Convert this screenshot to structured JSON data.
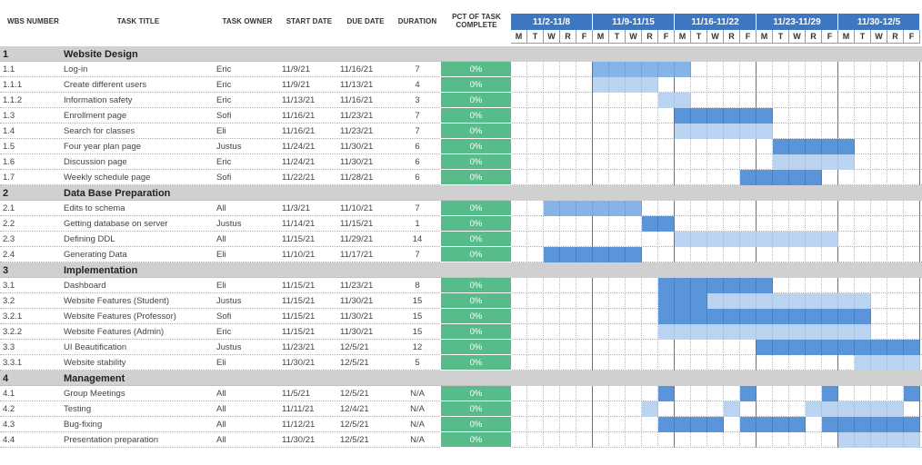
{
  "headers": {
    "wbs": "WBS NUMBER",
    "title": "TASK TITLE",
    "owner": "TASK OWNER",
    "start": "START DATE",
    "due": "DUE DATE",
    "duration": "DURATION",
    "pct": "PCT OF TASK COMPLETE"
  },
  "weeks": [
    "11/2-11/8",
    "11/9-11/15",
    "11/16-11/22",
    "11/23-11/29",
    "11/30-12/5"
  ],
  "days": [
    "M",
    "T",
    "W",
    "R",
    "F",
    "M",
    "T",
    "W",
    "R",
    "F",
    "M",
    "T",
    "W",
    "R",
    "F",
    "M",
    "T",
    "W",
    "R",
    "F",
    "M",
    "T",
    "W",
    "R",
    "F"
  ],
  "colors": {
    "dark": "#5b95d9",
    "mid": "#87b4e6",
    "light": "#b9d3f0",
    "complete": "#57bb8a",
    "week_header": "#3d77c2",
    "section": "#d0d0d0"
  },
  "rows": [
    {
      "type": "section",
      "wbs": "1",
      "title": "Website Design"
    },
    {
      "type": "task",
      "wbs": "1.1",
      "title": "Log-in",
      "owner": "Eric",
      "start": "11/9/21",
      "due": "11/16/21",
      "duration": "7",
      "pct": "0%",
      "bar": [
        [
          5,
          10,
          "mid"
        ]
      ]
    },
    {
      "type": "task",
      "wbs": "1.1.1",
      "title": "Create different users",
      "owner": "Eric",
      "start": "11/9/21",
      "due": "11/13/21",
      "duration": "4",
      "pct": "0%",
      "bar": [
        [
          5,
          8,
          "light"
        ]
      ]
    },
    {
      "type": "task",
      "wbs": "1.1.2",
      "title": "Information safety",
      "owner": "Eric",
      "start": "11/13/21",
      "due": "11/16/21",
      "duration": "3",
      "pct": "0%",
      "bar": [
        [
          9,
          10,
          "light"
        ]
      ]
    },
    {
      "type": "task",
      "wbs": "1.3",
      "title": "Enrollment page",
      "owner": "Sofi",
      "start": "11/16/21",
      "due": "11/23/21",
      "duration": "7",
      "pct": "0%",
      "bar": [
        [
          10,
          15,
          "dark"
        ]
      ]
    },
    {
      "type": "task",
      "wbs": "1.4",
      "title": "Search for classes",
      "owner": "Eli",
      "start": "11/16/21",
      "due": "11/23/21",
      "duration": "7",
      "pct": "0%",
      "bar": [
        [
          10,
          15,
          "light"
        ]
      ]
    },
    {
      "type": "task",
      "wbs": "1.5",
      "title": "Four year plan page",
      "owner": "Justus",
      "start": "11/24/21",
      "due": "11/30/21",
      "duration": "6",
      "pct": "0%",
      "bar": [
        [
          16,
          20,
          "dark"
        ]
      ]
    },
    {
      "type": "task",
      "wbs": "1.6",
      "title": "Discussion page",
      "owner": "Eric",
      "start": "11/24/21",
      "due": "11/30/21",
      "duration": "6",
      "pct": "0%",
      "bar": [
        [
          16,
          20,
          "light"
        ]
      ]
    },
    {
      "type": "task",
      "wbs": "1.7",
      "title": "Weekly schedule page",
      "owner": "Sofi",
      "start": "11/22/21",
      "due": "11/28/21",
      "duration": "6",
      "pct": "0%",
      "bar": [
        [
          14,
          18,
          "dark"
        ]
      ]
    },
    {
      "type": "section",
      "wbs": "2",
      "title": "Data Base Preparation"
    },
    {
      "type": "task",
      "wbs": "2.1",
      "title": "Edits to schema",
      "owner": "All",
      "start": "11/3/21",
      "due": "11/10/21",
      "duration": "7",
      "pct": "0%",
      "bar": [
        [
          2,
          7,
          "mid"
        ]
      ]
    },
    {
      "type": "task",
      "wbs": "2.2",
      "title": "Getting database on server",
      "owner": "Justus",
      "start": "11/14/21",
      "due": "11/15/21",
      "duration": "1",
      "pct": "0%",
      "bar": [
        [
          8,
          9,
          "dark"
        ]
      ]
    },
    {
      "type": "task",
      "wbs": "2.3",
      "title": "Defining DDL",
      "owner": "All",
      "start": "11/15/21",
      "due": "11/29/21",
      "duration": "14",
      "pct": "0%",
      "bar": [
        [
          10,
          19,
          "light"
        ]
      ]
    },
    {
      "type": "task",
      "wbs": "2.4",
      "title": "Generating Data",
      "owner": "Eli",
      "start": "11/10/21",
      "due": "11/17/21",
      "duration": "7",
      "pct": "0%",
      "bar": [
        [
          2,
          7,
          "dark"
        ]
      ]
    },
    {
      "type": "section",
      "wbs": "3",
      "title": "Implementation"
    },
    {
      "type": "task",
      "wbs": "3.1",
      "title": "Dashboard",
      "owner": "Eli",
      "start": "11/15/21",
      "due": "11/23/21",
      "duration": "8",
      "pct": "0%",
      "bar": [
        [
          9,
          15,
          "dark"
        ]
      ]
    },
    {
      "type": "task",
      "wbs": "3.2",
      "title": "Website Features (Student)",
      "owner": "Justus",
      "start": "11/15/21",
      "due": "11/30/21",
      "duration": "15",
      "pct": "0%",
      "bar": [
        [
          9,
          11,
          "dark"
        ],
        [
          12,
          21,
          "light"
        ]
      ]
    },
    {
      "type": "task",
      "wbs": "3.2.1",
      "title": "Website Features (Professor)",
      "owner": "Sofi",
      "start": "11/15/21",
      "due": "11/30/21",
      "duration": "15",
      "pct": "0%",
      "bar": [
        [
          9,
          21,
          "dark"
        ]
      ]
    },
    {
      "type": "task",
      "wbs": "3.2.2",
      "title": "Website Features (Admin)",
      "owner": "Eric",
      "start": "11/15/21",
      "due": "11/30/21",
      "duration": "15",
      "pct": "0%",
      "bar": [
        [
          9,
          21,
          "light"
        ]
      ]
    },
    {
      "type": "task",
      "wbs": "3.3",
      "title": "UI Beautification",
      "owner": "Justus",
      "start": "11/23/21",
      "due": "12/5/21",
      "duration": "12",
      "pct": "0%",
      "bar": [
        [
          15,
          24,
          "dark"
        ]
      ]
    },
    {
      "type": "task",
      "wbs": "3.3.1",
      "title": "Website stability",
      "owner": "Eli",
      "start": "11/30/21",
      "due": "12/5/21",
      "duration": "5",
      "pct": "0%",
      "bar": [
        [
          21,
          24,
          "light"
        ]
      ]
    },
    {
      "type": "section",
      "wbs": "4",
      "title": "Management"
    },
    {
      "type": "task",
      "wbs": "4.1",
      "title": "Group Meetings",
      "owner": "All",
      "start": "11/5/21",
      "due": "12/5/21",
      "duration": "N/A",
      "pct": "0%",
      "bar": [
        [
          9,
          9,
          "dark"
        ],
        [
          14,
          14,
          "dark"
        ],
        [
          19,
          19,
          "dark"
        ],
        [
          24,
          24,
          "dark"
        ]
      ]
    },
    {
      "type": "task",
      "wbs": "4.2",
      "title": "Testing",
      "owner": "All",
      "start": "11/11/21",
      "due": "12/4/21",
      "duration": "N/A",
      "pct": "0%",
      "bar": [
        [
          8,
          8,
          "light"
        ],
        [
          13,
          13,
          "light"
        ],
        [
          18,
          23,
          "light"
        ]
      ]
    },
    {
      "type": "task",
      "wbs": "4.3",
      "title": "Bug-fixing",
      "owner": "All",
      "start": "11/12/21",
      "due": "12/5/21",
      "duration": "N/A",
      "pct": "0%",
      "bar": [
        [
          9,
          12,
          "dark"
        ],
        [
          14,
          17,
          "dark"
        ],
        [
          19,
          24,
          "dark"
        ]
      ]
    },
    {
      "type": "task",
      "wbs": "4.4",
      "title": "Presentation preparation",
      "owner": "All",
      "start": "11/30/21",
      "due": "12/5/21",
      "duration": "N/A",
      "pct": "0%",
      "bar": [
        [
          20,
          24,
          "light"
        ]
      ]
    }
  ]
}
